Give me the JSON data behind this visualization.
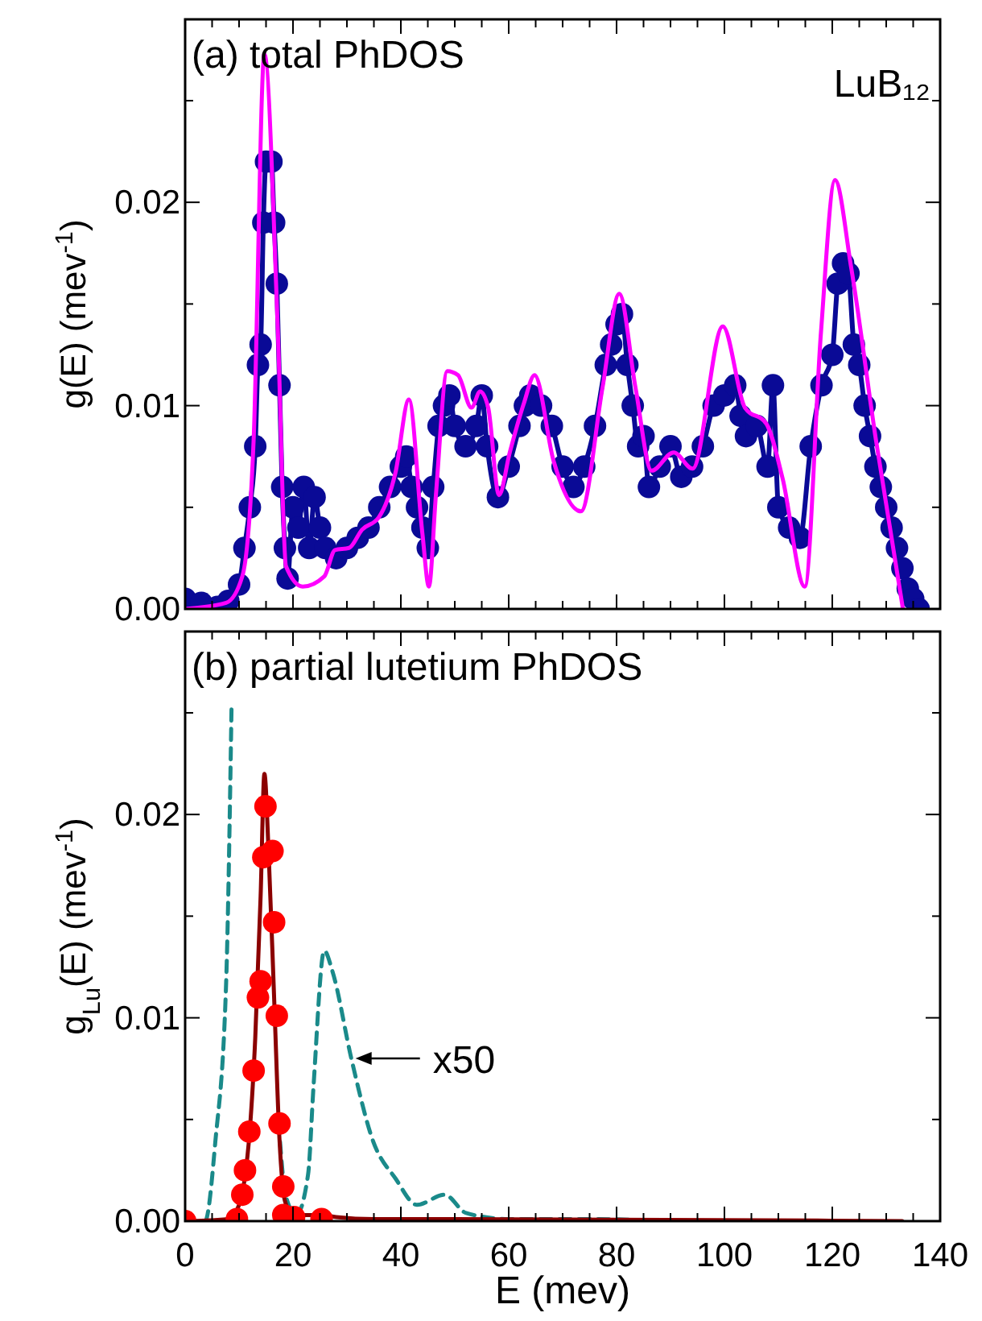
{
  "chart_data": [
    {
      "type": "line",
      "title": "(a)  total PhDOS",
      "ylabel": "g(E) (mev$^{-1}$)",
      "annotations": [
        "LuB₁₂"
      ],
      "xlim": [
        0,
        140
      ],
      "ylim": [
        0,
        0.029
      ],
      "tick_labels": "y",
      "xticks": [
        0,
        {
          "value": 5,
          "label": null
        },
        20,
        {
          "value": 10,
          "label": null
        },
        {
          "value": 15,
          "label": null
        },
        {
          "value": 25,
          "label": null
        },
        {
          "value": 30,
          "label": null
        },
        {
          "value": 35,
          "label": null
        },
        40,
        {
          "value": 45,
          "label": null
        },
        {
          "value": 50,
          "label": null
        },
        {
          "value": 55,
          "label": null
        },
        60,
        {
          "value": 65,
          "label": null
        },
        {
          "value": 70,
          "label": null
        },
        {
          "value": 75,
          "label": null
        },
        80,
        {
          "value": 85,
          "label": null
        },
        {
          "value": 90,
          "label": null
        },
        {
          "value": 95,
          "label": null
        },
        100,
        {
          "value": 105,
          "label": null
        },
        {
          "value": 110,
          "label": null
        },
        {
          "value": 115,
          "label": null
        },
        120,
        {
          "value": 125,
          "label": null
        },
        {
          "value": 130,
          "label": null
        },
        {
          "value": 135,
          "label": null
        },
        140
      ],
      "yticks": [
        {
          "value": 0,
          "label": "0.00"
        },
        {
          "value": 0.005,
          "label": null
        },
        {
          "value": 0.01,
          "label": "0.01"
        },
        {
          "value": 0.015,
          "label": null
        },
        {
          "value": 0.02,
          "label": "0.02"
        },
        {
          "value": 0.025,
          "label": null
        }
      ],
      "series": [
        {
          "marker": "circle",
          "color": "#0a0a96",
          "x": [
            0,
            3,
            6,
            8,
            10,
            11,
            12,
            13,
            13.5,
            14,
            14.5,
            15,
            16,
            16.5,
            17,
            17.5,
            18,
            18.5,
            19,
            20,
            21,
            22,
            23,
            24,
            25,
            26,
            28,
            30,
            32,
            34,
            36,
            38,
            40,
            41,
            42,
            43,
            44,
            45,
            46,
            47,
            48,
            49,
            50,
            52,
            54,
            55,
            56,
            58,
            60,
            62,
            63,
            64,
            66,
            68,
            70,
            72,
            74,
            76,
            78,
            79,
            80,
            81,
            82,
            83,
            84,
            85,
            86,
            88,
            90,
            92,
            94,
            96,
            98,
            100,
            102,
            103,
            104,
            106,
            108,
            109,
            110,
            112,
            114,
            116,
            118,
            120,
            121,
            122,
            123,
            124,
            125,
            126,
            127,
            128,
            129,
            130,
            131,
            132,
            133,
            134,
            135,
            136
          ],
          "values": [
            0.0005,
            0.0003,
            0.0001,
            0.0004,
            0.0012,
            0.003,
            0.005,
            0.008,
            0.012,
            0.013,
            0.019,
            0.022,
            0.022,
            0.019,
            0.016,
            0.011,
            0.006,
            0.003,
            0.0015,
            0.005,
            0.004,
            0.006,
            0.003,
            0.0055,
            0.004,
            0.003,
            0.0025,
            0.003,
            0.0035,
            0.004,
            0.005,
            0.006,
            0.007,
            0.0075,
            0.006,
            0.005,
            0.004,
            0.003,
            0.006,
            0.009,
            0.01,
            0.0105,
            0.009,
            0.008,
            0.009,
            0.0105,
            0.008,
            0.0055,
            0.007,
            0.009,
            0.01,
            0.0105,
            0.01,
            0.009,
            0.007,
            0.006,
            0.007,
            0.009,
            0.012,
            0.013,
            0.014,
            0.0145,
            0.012,
            0.01,
            0.008,
            0.0085,
            0.006,
            0.007,
            0.008,
            0.0065,
            0.007,
            0.008,
            0.01,
            0.0105,
            0.011,
            0.0095,
            0.0085,
            0.009,
            0.007,
            0.011,
            0.005,
            0.004,
            0.0035,
            0.008,
            0.011,
            0.0125,
            0.016,
            0.017,
            0.0165,
            0.013,
            0.012,
            0.01,
            0.0085,
            0.007,
            0.006,
            0.005,
            0.004,
            0.003,
            0.002,
            0.001,
            0.0005,
            0
          ]
        },
        {
          "line_style": "solid",
          "color": "#ff00ff",
          "x": [
            0,
            7.6,
            10.6,
            12.7,
            14.7,
            17.2,
            18.7,
            21.8,
            25.8,
            27.8,
            30.4,
            32.8,
            35.9,
            39,
            41.5,
            44,
            45.2,
            46.5,
            48.6,
            50.6,
            53.1,
            54.7,
            56.2,
            58.2,
            60.2,
            62.8,
            64.8,
            68.3,
            73.4,
            77.4,
            80.5,
            83.5,
            86.5,
            90.6,
            94.1,
            99.7,
            103.8,
            107.8,
            110.8,
            114.9,
            117.9,
            120.5,
            123.5,
            128.1,
            133.1
          ],
          "values": [
            0,
            0.0003,
            0.0016,
            0.0083,
            0.0273,
            0.0136,
            0.0021,
            0.0011,
            0.0016,
            0.0029,
            0.003,
            0.0039,
            0.0045,
            0.0067,
            0.0103,
            0.0037,
            0.0011,
            0.0056,
            0.0117,
            0.0115,
            0.0099,
            0.0107,
            0.0099,
            0.0056,
            0.0077,
            0.0101,
            0.0115,
            0.0073,
            0.0048,
            0.0109,
            0.0155,
            0.0109,
            0.0068,
            0.0077,
            0.0069,
            0.0139,
            0.0099,
            0.0091,
            0.0064,
            0.0011,
            0.0136,
            0.0211,
            0.0168,
            0.0083,
            0
          ]
        }
      ]
    },
    {
      "type": "line",
      "title": "(b)  partial lutetium PhDOS",
      "ylabel": "g$_{Lu}$(E) (mev$^{-1}$)",
      "xlabel": "E (mev)",
      "annotations": [
        {
          "text": "x50",
          "x": 31,
          "y": 0.008
        }
      ],
      "xlim": [
        0,
        140
      ],
      "ylim": [
        0,
        0.029
      ],
      "xticks": [
        0,
        {
          "value": 5,
          "label": null
        },
        20,
        {
          "value": 10,
          "label": null
        },
        {
          "value": 15,
          "label": null
        },
        {
          "value": 25,
          "label": null
        },
        {
          "value": 30,
          "label": null
        },
        {
          "value": 35,
          "label": null
        },
        40,
        {
          "value": 45,
          "label": null
        },
        {
          "value": 50,
          "label": null
        },
        {
          "value": 55,
          "label": null
        },
        60,
        {
          "value": 65,
          "label": null
        },
        {
          "value": 70,
          "label": null
        },
        {
          "value": 75,
          "label": null
        },
        80,
        {
          "value": 85,
          "label": null
        },
        {
          "value": 90,
          "label": null
        },
        {
          "value": 95,
          "label": null
        },
        100,
        {
          "value": 105,
          "label": null
        },
        {
          "value": 110,
          "label": null
        },
        {
          "value": 115,
          "label": null
        },
        120,
        {
          "value": 125,
          "label": null
        },
        {
          "value": 130,
          "label": null
        },
        {
          "value": 135,
          "label": null
        },
        140
      ],
      "yticks": [
        {
          "value": 0,
          "label": "0.00"
        },
        {
          "value": 0.005,
          "label": null
        },
        {
          "value": 0.01,
          "label": "0.01"
        },
        {
          "value": 0.015,
          "label": null
        },
        {
          "value": 0.02,
          "label": "0.02"
        },
        {
          "value": 0.025,
          "label": null
        }
      ],
      "series": [
        {
          "line_style": "dashed",
          "color": "#1a8a8a",
          "x": [
            0,
            3.7,
            5.6,
            7.6,
            8.6,
            8.9,
            12,
            17.1,
            17.6,
            18.6,
            20.6,
            22.8,
            23.8,
            25.8,
            27.3,
            30.9,
            34.9,
            39,
            43,
            48.1,
            52.1,
            60,
            75,
            90
          ],
          "values": [
            0,
            0,
            0.0039,
            0.0117,
            0.0252,
            null,
            null,
            null,
            0.0039,
            0.0013,
            0.0003,
            0.0023,
            0.0066,
            0.0133,
            0.0123,
            0.0079,
            0.0039,
            0.0021,
            0.0008,
            0.0013,
            0.0004,
            0.0001,
            0.0001,
            0
          ]
        },
        {
          "line_style": "solid",
          "color": "#8b0000",
          "x": [
            0,
            8,
            10,
            11,
            12,
            13,
            14,
            14.7,
            15.5,
            16.5,
            17.5,
            18.5,
            20,
            25,
            28,
            35,
            50,
            133
          ],
          "values": [
            0,
            0.0001,
            0.0008,
            0.002,
            0.0045,
            0.009,
            0.016,
            0.022,
            0.018,
            0.011,
            0.004,
            0.001,
            0.0003,
            0.0003,
            0.0002,
            0.0001,
            0.0001,
            0
          ]
        },
        {
          "type": "scatter",
          "marker": "circle",
          "color": "#ff0000",
          "x": [
            0,
            9.6,
            10.6,
            11.1,
            11.9,
            12.7,
            13.5,
            14,
            14.5,
            14.9,
            16.2,
            16.5,
            17,
            17.5,
            18.2,
            18.2,
            20.2,
            25.3
          ],
          "values": [
            0,
            0.0001,
            0.0013,
            0.0025,
            0.0044,
            0.0074,
            0.011,
            0.0118,
            0.0179,
            0.0204,
            0.0182,
            0.0147,
            0.0101,
            0.0048,
            0.0017,
            0.0003,
            0.0002,
            0.0001
          ]
        }
      ]
    }
  ]
}
